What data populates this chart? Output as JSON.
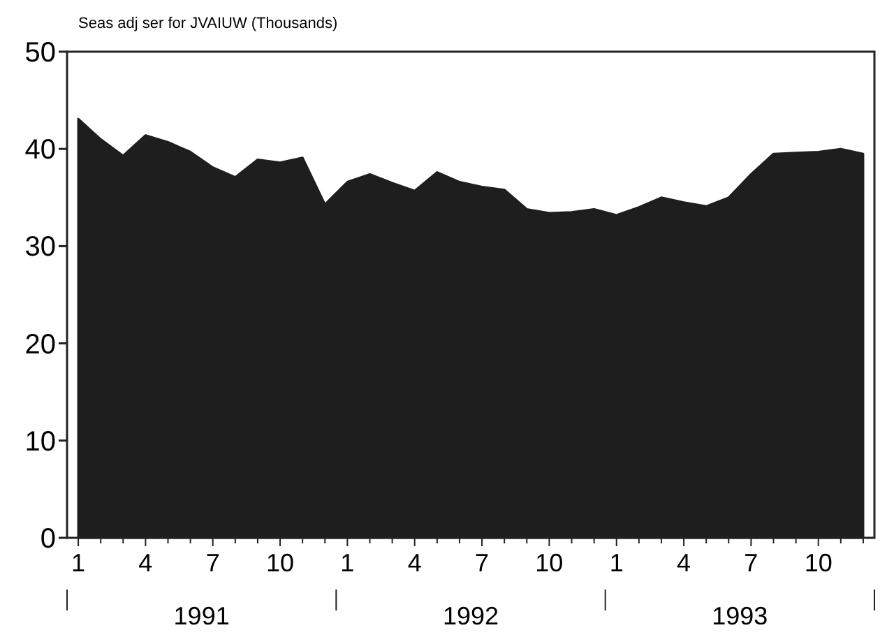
{
  "chart_data": {
    "type": "area",
    "title": "Seas adj ser for JVAIUW (Thousands)",
    "categories": [
      "1",
      null,
      null,
      "4",
      null,
      null,
      "7",
      null,
      null,
      "10",
      null,
      null,
      "1",
      null,
      null,
      "4",
      null,
      null,
      "7",
      null,
      null,
      "10",
      null,
      null,
      "1",
      null,
      null,
      "4",
      null,
      null,
      "7",
      null,
      null,
      "10",
      null,
      null
    ],
    "series": [
      {
        "color": "#1e1e1e",
        "values": [
          43.1,
          41.0,
          39.3,
          41.4,
          40.7,
          39.7,
          38.1,
          37.1,
          38.9,
          38.6,
          39.1,
          34.3,
          36.6,
          37.4,
          36.5,
          35.7,
          37.6,
          36.6,
          36.1,
          35.8,
          33.8,
          33.4,
          33.5,
          33.8,
          33.2,
          34.0,
          35.0,
          34.5,
          34.1,
          35.0,
          37.4,
          39.5,
          39.6,
          39.7,
          40.0,
          39.5
        ]
      }
    ],
    "ylim": [
      0,
      50
    ],
    "yticks": [
      0,
      10,
      20,
      30,
      40,
      50
    ],
    "grid": false,
    "annotations": [
      "1991",
      "1992",
      "1993"
    ]
  }
}
